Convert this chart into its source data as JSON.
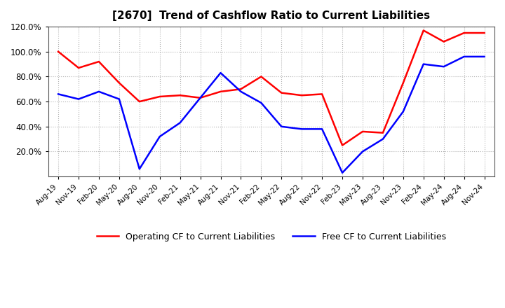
{
  "title": "[2670]  Trend of Cashflow Ratio to Current Liabilities",
  "x_labels": [
    "Aug-19",
    "Nov-19",
    "Feb-20",
    "May-20",
    "Aug-20",
    "Nov-20",
    "Feb-21",
    "May-21",
    "Aug-21",
    "Nov-21",
    "Feb-22",
    "May-22",
    "Aug-22",
    "Nov-22",
    "Feb-23",
    "May-23",
    "Aug-23",
    "Nov-23",
    "Feb-24",
    "May-24",
    "Aug-24",
    "Nov-24"
  ],
  "operating_cf": [
    100.0,
    87.0,
    92.0,
    75.0,
    60.0,
    64.0,
    65.0,
    63.0,
    68.0,
    70.0,
    80.0,
    67.0,
    65.0,
    66.0,
    25.0,
    36.0,
    35.0,
    75.0,
    117.0,
    108.0,
    115.0,
    115.0
  ],
  "free_cf": [
    66.0,
    62.0,
    68.0,
    62.0,
    6.0,
    32.0,
    43.0,
    63.0,
    83.0,
    68.0,
    59.0,
    40.0,
    38.0,
    38.0,
    3.0,
    20.0,
    30.0,
    52.0,
    90.0,
    88.0,
    96.0,
    96.0
  ],
  "operating_color": "#ff0000",
  "free_color": "#0000ff",
  "ylim_min": 0,
  "ylim_max": 120.0,
  "yticks": [
    20.0,
    40.0,
    60.0,
    80.0,
    100.0,
    120.0
  ],
  "background_color": "#ffffff",
  "grid_color": "#aaaaaa",
  "legend_operating": "Operating CF to Current Liabilities",
  "legend_free": "Free CF to Current Liabilities"
}
